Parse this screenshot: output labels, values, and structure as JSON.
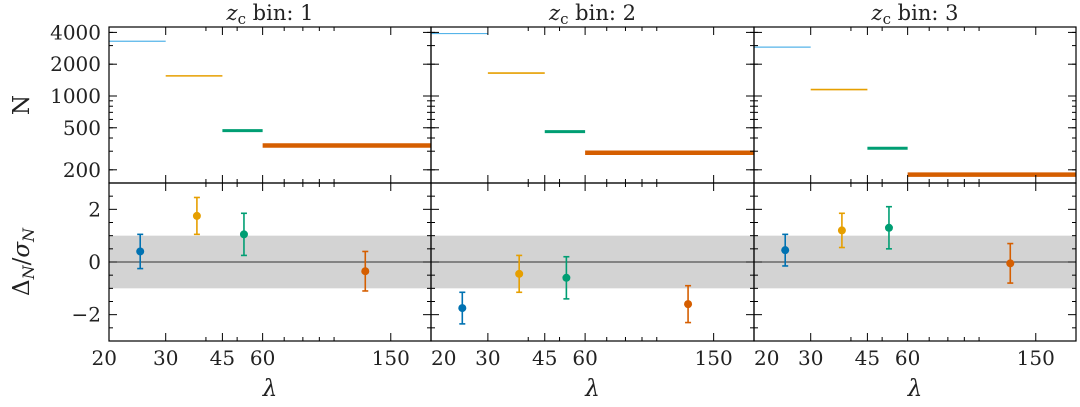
{
  "figure": {
    "colors": [
      "#56b4e9",
      "#e69f00",
      "#009e73",
      "#d55e00"
    ],
    "band_color": "#d3d3d3",
    "ylabel_top": "N",
    "ylabel_bottom": "Δ_N/σ_N",
    "xlabel": "λ"
  },
  "chart_data": [
    {
      "type": "line",
      "panel": "top",
      "title": "z_c bin: 1",
      "x_scale": "log",
      "y_scale": "log",
      "xlim": [
        20,
        200
      ],
      "ylim": [
        150,
        4500
      ],
      "x_ticks": [
        20,
        30,
        45,
        60,
        150
      ],
      "y_ticks": [
        200,
        500,
        1000,
        2000,
        4000
      ],
      "series": [
        {
          "x": [
            20,
            30
          ],
          "values": [
            3300,
            3300
          ]
        },
        {
          "x": [
            30,
            45
          ],
          "values": [
            1550,
            1550
          ]
        },
        {
          "x": [
            45,
            60
          ],
          "values": [
            470,
            470
          ]
        },
        {
          "x": [
            60,
            200
          ],
          "values": [
            340,
            340
          ]
        }
      ]
    },
    {
      "type": "scatter",
      "panel": "bottom",
      "title": "z_c bin: 1",
      "x_scale": "log",
      "xlim": [
        20,
        200
      ],
      "ylim": [
        -3,
        3.0
      ],
      "x_ticks": [
        20,
        30,
        45,
        60,
        150
      ],
      "y_ticks": [
        -2,
        0,
        2
      ],
      "band": [
        -1,
        1
      ],
      "points": [
        {
          "x": 25,
          "y": 0.4,
          "err": 0.65
        },
        {
          "x": 37.5,
          "y": 1.75,
          "err": 0.7
        },
        {
          "x": 52.5,
          "y": 1.05,
          "err": 0.8
        },
        {
          "x": 125,
          "y": -0.35,
          "err": 0.75
        }
      ]
    },
    {
      "type": "line",
      "panel": "top",
      "title": "z_c bin: 2",
      "x_scale": "log",
      "y_scale": "log",
      "xlim": [
        20,
        200
      ],
      "ylim": [
        150,
        4500
      ],
      "x_ticks": [
        20,
        30,
        45,
        60,
        150
      ],
      "y_ticks": [
        200,
        500,
        1000,
        2000,
        4000
      ],
      "series": [
        {
          "x": [
            20,
            30
          ],
          "values": [
            3900,
            3900
          ]
        },
        {
          "x": [
            30,
            45
          ],
          "values": [
            1650,
            1650
          ]
        },
        {
          "x": [
            45,
            60
          ],
          "values": [
            460,
            460
          ]
        },
        {
          "x": [
            60,
            200
          ],
          "values": [
            290,
            290
          ]
        }
      ]
    },
    {
      "type": "scatter",
      "panel": "bottom",
      "title": "z_c bin: 2",
      "x_scale": "log",
      "xlim": [
        20,
        200
      ],
      "ylim": [
        -3,
        3.0
      ],
      "x_ticks": [
        20,
        30,
        45,
        60,
        150
      ],
      "y_ticks": [
        -2,
        0,
        2
      ],
      "band": [
        -1,
        1
      ],
      "points": [
        {
          "x": 25,
          "y": -1.75,
          "err": 0.6
        },
        {
          "x": 37.5,
          "y": -0.45,
          "err": 0.7
        },
        {
          "x": 52.5,
          "y": -0.6,
          "err": 0.8
        },
        {
          "x": 125,
          "y": -1.6,
          "err": 0.7
        }
      ]
    },
    {
      "type": "line",
      "panel": "top",
      "title": "z_c bin: 3",
      "x_scale": "log",
      "y_scale": "log",
      "xlim": [
        20,
        200
      ],
      "ylim": [
        150,
        4500
      ],
      "x_ticks": [
        20,
        30,
        45,
        60,
        150
      ],
      "y_ticks": [
        200,
        500,
        1000,
        2000,
        4000
      ],
      "series": [
        {
          "x": [
            20,
            30
          ],
          "values": [
            2900,
            2900
          ]
        },
        {
          "x": [
            30,
            45
          ],
          "values": [
            1150,
            1150
          ]
        },
        {
          "x": [
            45,
            60
          ],
          "values": [
            320,
            320
          ]
        },
        {
          "x": [
            60,
            200
          ],
          "values": [
            180,
            180
          ]
        }
      ]
    },
    {
      "type": "scatter",
      "panel": "bottom",
      "title": "z_c bin: 3",
      "x_scale": "log",
      "xlim": [
        20,
        200
      ],
      "ylim": [
        -3,
        3.0
      ],
      "x_ticks": [
        20,
        30,
        45,
        60,
        150
      ],
      "y_ticks": [
        -2,
        0,
        2
      ],
      "band": [
        -1,
        1
      ],
      "points": [
        {
          "x": 25,
          "y": 0.45,
          "err": 0.6
        },
        {
          "x": 37.5,
          "y": 1.2,
          "err": 0.65
        },
        {
          "x": 52.5,
          "y": 1.3,
          "err": 0.8
        },
        {
          "x": 125,
          "y": -0.05,
          "err": 0.75
        }
      ]
    }
  ]
}
